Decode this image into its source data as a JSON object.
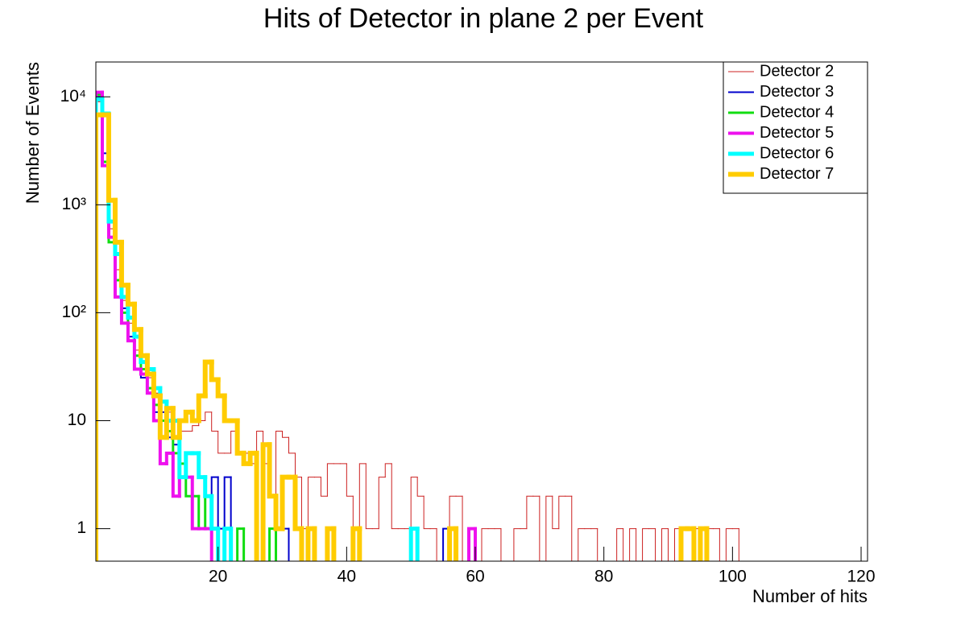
{
  "chart_data": {
    "type": "histogram",
    "title": "Hits of Detector in plane 2 per Event",
    "x_label": "Number of hits",
    "y_label": "Number of Events",
    "log_y": true,
    "grid": false,
    "legend_position": "top-right",
    "xlim": [
      1,
      121
    ],
    "xticks": [
      20,
      40,
      60,
      80,
      100,
      120
    ],
    "ylim": [
      0.5,
      21000
    ],
    "yticks": [
      1,
      10,
      {
        "value": 100,
        "label": "10²"
      },
      {
        "value": 1000,
        "label": "10³"
      },
      {
        "value": 10000,
        "label": "10⁴"
      }
    ],
    "bins": [
      1,
      2,
      3,
      4,
      5,
      6,
      7,
      8,
      9,
      10,
      11,
      12,
      13,
      14,
      15,
      16,
      17,
      18,
      19,
      20,
      21,
      22,
      23,
      24,
      25,
      26,
      27,
      28,
      29,
      30,
      31,
      32,
      33,
      34,
      35,
      36,
      37,
      38,
      39,
      40,
      41,
      42,
      43,
      44,
      45,
      46,
      47,
      48,
      49,
      50,
      51,
      52,
      53,
      54,
      55,
      56,
      57,
      58,
      59,
      60,
      61,
      62,
      63,
      64,
      65,
      66,
      67,
      68,
      69,
      70,
      71,
      72,
      73,
      74,
      75,
      76,
      77,
      78,
      79,
      80,
      81,
      82,
      83,
      84,
      85,
      86,
      87,
      88,
      89,
      90,
      91,
      92,
      93,
      94,
      95,
      96,
      97,
      98,
      99,
      100,
      101,
      102,
      103,
      104,
      105,
      106,
      107,
      108,
      109,
      110,
      111,
      112,
      113,
      114,
      115,
      116,
      117,
      118,
      119,
      120,
      121
    ],
    "series": [
      {
        "name": "Detector 2",
        "color": "#cc2020",
        "values": [
          9000,
          3000,
          600,
          250,
          130,
          80,
          45,
          30,
          25,
          18,
          15,
          12,
          10,
          8,
          8,
          9,
          10,
          12,
          8,
          5,
          5,
          8,
          5,
          5,
          4,
          8,
          4,
          2,
          8,
          7,
          5,
          3,
          1,
          3,
          3,
          2,
          4,
          4,
          4,
          2,
          1,
          4,
          1,
          1,
          3,
          4,
          1,
          1,
          1,
          3,
          2,
          1,
          1,
          0,
          1,
          2,
          2,
          0,
          1,
          0,
          1,
          1,
          1,
          0,
          0,
          1,
          1,
          2,
          2,
          0,
          2,
          1,
          2,
          2,
          0,
          1,
          1,
          1,
          0,
          0,
          0,
          1,
          0,
          1,
          0,
          1,
          1,
          0,
          1,
          0,
          1,
          0,
          0,
          1,
          0,
          1,
          1,
          0,
          1,
          1,
          0,
          0,
          0,
          0,
          0,
          0,
          0,
          0,
          0,
          0,
          0,
          0,
          0,
          0,
          0,
          0,
          0,
          0,
          0,
          0
        ]
      },
      {
        "name": "Detector 3",
        "color": "#0000cc",
        "values": [
          10000,
          3000,
          450,
          200,
          110,
          60,
          40,
          25,
          18,
          12,
          12,
          7,
          6,
          4,
          3,
          2,
          1,
          1,
          3,
          1,
          3,
          0,
          0,
          0,
          0,
          0,
          0,
          1,
          1,
          1,
          0,
          0,
          0,
          0,
          0,
          0,
          0,
          0,
          0,
          0,
          0,
          0,
          0,
          0,
          0,
          0,
          0,
          0,
          0,
          0,
          0,
          0,
          0,
          0,
          1,
          0,
          0,
          0,
          0,
          0,
          0,
          0,
          0,
          0,
          0,
          0,
          0,
          0,
          0,
          0,
          0,
          0,
          0,
          0,
          0,
          0,
          0,
          0,
          0,
          0,
          0,
          0,
          0,
          0,
          0,
          0,
          0,
          0,
          0,
          0,
          0,
          0,
          0,
          0,
          0,
          0,
          0,
          0,
          0,
          0,
          0,
          0,
          0,
          0,
          0,
          0,
          0,
          0,
          0,
          0,
          0,
          0,
          0,
          0,
          0,
          0,
          0,
          0,
          0,
          0
        ]
      },
      {
        "name": "Detector 4",
        "color": "#11dd11",
        "values": [
          10500,
          2500,
          450,
          200,
          100,
          55,
          40,
          30,
          20,
          14,
          10,
          8,
          5,
          4,
          2,
          2,
          1,
          2,
          0,
          0,
          0,
          0,
          1,
          0,
          0,
          0,
          0,
          1,
          0,
          0,
          0,
          0,
          0,
          0,
          0,
          0,
          0,
          0,
          0,
          0,
          0,
          0,
          0,
          0,
          0,
          0,
          0,
          0,
          0,
          0,
          0,
          0,
          0,
          0,
          0,
          0,
          0,
          0,
          0,
          0,
          0,
          0,
          0,
          0,
          0,
          0,
          0,
          0,
          0,
          0,
          0,
          0,
          0,
          0,
          0,
          0,
          0,
          0,
          0,
          0,
          0,
          0,
          0,
          0,
          0,
          0,
          0,
          0,
          0,
          0,
          0,
          0,
          0,
          0,
          0,
          0,
          0,
          0,
          0,
          0,
          0,
          0,
          0,
          0,
          0,
          0,
          0,
          0,
          0,
          0,
          0,
          0,
          0,
          0,
          0,
          0,
          0,
          0,
          0,
          0
        ]
      },
      {
        "name": "Detector 5",
        "color": "#ee11ee",
        "values": [
          11000,
          2300,
          500,
          140,
          80,
          55,
          30,
          27,
          18,
          10,
          4,
          5,
          2,
          3,
          3,
          1,
          1,
          1,
          0,
          0,
          1,
          0,
          0,
          0,
          0,
          0,
          0,
          0,
          0,
          0,
          0,
          0,
          0,
          0,
          0,
          0,
          0,
          0,
          0,
          0,
          0,
          0,
          0,
          0,
          0,
          0,
          0,
          0,
          0,
          0,
          0,
          0,
          0,
          0,
          0,
          1,
          0,
          0,
          1,
          0,
          0,
          0,
          0,
          0,
          0,
          0,
          0,
          0,
          0,
          0,
          0,
          0,
          0,
          0,
          0,
          0,
          0,
          0,
          0,
          0,
          0,
          0,
          0,
          0,
          0,
          0,
          0,
          0,
          0,
          0,
          0,
          0,
          0,
          0,
          0,
          0,
          0,
          0,
          0,
          0,
          0,
          0,
          0,
          0,
          0,
          0,
          0,
          0,
          0,
          0,
          0,
          0,
          0,
          0,
          0,
          0,
          0,
          0,
          0,
          0
        ]
      },
      {
        "name": "Detector 6",
        "color": "#00ffff",
        "values": [
          9500,
          7000,
          700,
          350,
          140,
          90,
          60,
          35,
          30,
          20,
          15,
          10,
          10,
          3,
          5,
          5,
          3,
          2,
          1,
          0,
          1,
          0,
          0,
          0,
          0,
          0,
          0,
          0,
          0,
          0,
          0,
          0,
          0,
          0,
          0,
          0,
          0,
          0,
          0,
          0,
          0,
          0,
          0,
          0,
          0,
          0,
          0,
          0,
          0,
          1,
          0,
          0,
          0,
          0,
          0,
          0,
          0,
          0,
          0,
          0,
          0,
          0,
          0,
          0,
          0,
          0,
          0,
          0,
          0,
          0,
          0,
          0,
          0,
          0,
          0,
          0,
          0,
          0,
          0,
          0,
          0,
          0,
          0,
          0,
          0,
          0,
          0,
          0,
          0,
          0,
          0,
          0,
          0,
          0,
          0,
          0,
          0,
          0,
          0,
          0,
          0,
          0,
          0,
          0,
          0,
          0,
          0,
          0,
          0,
          0,
          0,
          0,
          0,
          0,
          0,
          0,
          0,
          0,
          0,
          0
        ]
      },
      {
        "name": "Detector 7",
        "color": "#ffcc00",
        "values": [
          6800,
          6800,
          1100,
          450,
          180,
          120,
          70,
          40,
          27,
          17,
          7,
          13,
          7,
          10,
          12,
          10,
          17,
          35,
          24,
          17,
          10,
          10,
          5,
          4,
          5,
          0,
          6,
          2,
          1,
          3,
          3,
          1,
          0,
          1,
          0,
          0,
          1,
          0,
          0,
          0,
          1,
          0,
          0,
          0,
          0,
          0,
          0,
          0,
          0,
          0,
          0,
          0,
          0,
          0,
          0,
          1,
          0,
          0,
          0,
          0,
          0,
          0,
          0,
          0,
          0,
          0,
          0,
          0,
          0,
          0,
          0,
          0,
          0,
          0,
          0,
          0,
          0,
          0,
          0,
          0,
          0,
          0,
          0,
          0,
          0,
          0,
          0,
          0,
          0,
          0,
          0,
          1,
          1,
          0,
          1,
          0,
          0,
          0,
          0,
          0,
          0,
          0,
          0,
          0,
          0,
          0,
          0,
          0,
          0,
          0,
          0,
          0,
          0,
          0,
          0,
          0,
          0,
          0,
          0,
          0
        ]
      }
    ]
  }
}
